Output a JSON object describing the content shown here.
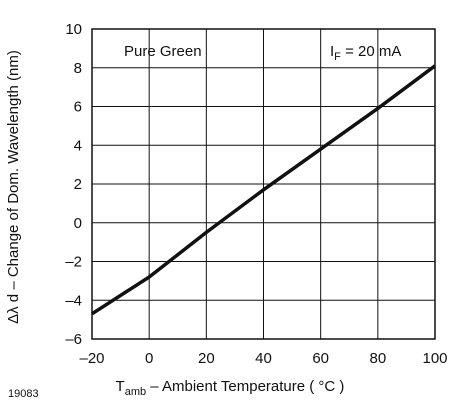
{
  "chart_data": {
    "type": "line",
    "xlabel": "T",
    "xlabel_sub": "amb",
    "xlabel_rest": " – Ambient Temperature ( °C )",
    "ylabel": "Δλ d – Change of Dom. Wavelength (nm)",
    "xlim": [
      -20,
      100
    ],
    "ylim": [
      -6,
      10
    ],
    "x_ticks": [
      -20,
      0,
      20,
      40,
      60,
      80,
      100
    ],
    "y_ticks": [
      -6,
      -4,
      -2,
      0,
      2,
      4,
      6,
      8,
      10
    ],
    "x_tick_labels": [
      "–20",
      "0",
      "20",
      "40",
      "60",
      "80",
      "100"
    ],
    "y_tick_labels": [
      "–6",
      "–4",
      "–2",
      "0",
      "2",
      "4",
      "6",
      "8",
      "10"
    ],
    "grid": true,
    "series": [
      {
        "x": [
          -20,
          0,
          20,
          40,
          60,
          80,
          100
        ],
        "y": [
          -4.7,
          -2.8,
          -0.5,
          1.7,
          3.8,
          5.9,
          8.1
        ]
      }
    ],
    "annotations": {
      "left": "Pure Green",
      "right_main": "I",
      "right_sub": "F",
      "right_rest": " = 20 mA"
    },
    "figure_id": "19083",
    "colors": {
      "line": "#111111",
      "grid": "#111111",
      "background": "#ffffff"
    }
  }
}
